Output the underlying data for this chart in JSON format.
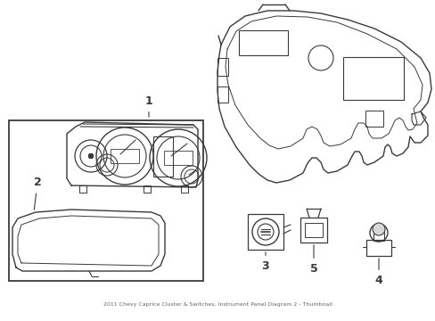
{
  "bg_color": "#ffffff",
  "line_color": "#3a3a3a",
  "figsize": [
    4.89,
    3.6
  ],
  "dpi": 100,
  "footer_text": "2011 Chevy Caprice Cluster & Switches, Instrument Panel Diagram 2 - Thumbnail"
}
